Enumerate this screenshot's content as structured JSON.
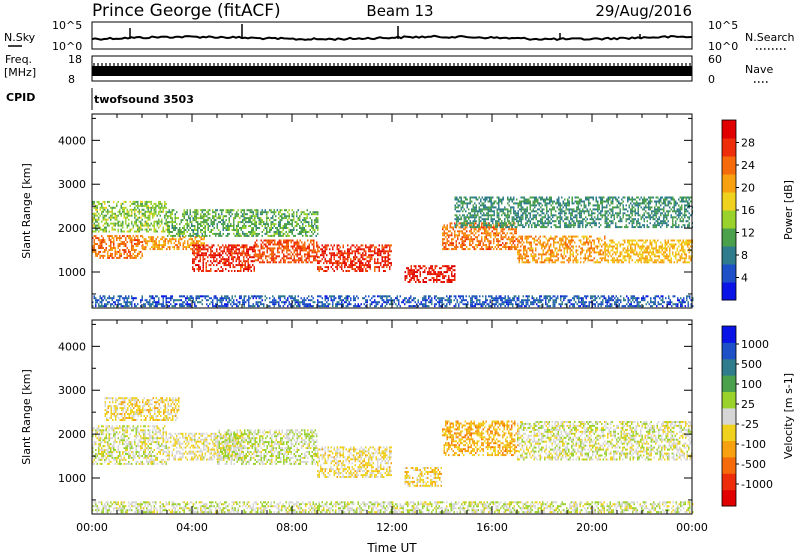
{
  "header": {
    "station": "Prince George (fitACF)",
    "beam": "Beam 13",
    "date": "29/Aug/2016"
  },
  "panels": {
    "noise": {
      "left_label": "N.Sky",
      "left_ticks": [
        "10^5",
        "10^0"
      ],
      "right_label": "N.Search",
      "right_ticks": [
        "10^5",
        "10^0"
      ]
    },
    "freq": {
      "left_label_1": "Freq.",
      "left_label_2": "[MHz]",
      "left_ticks": [
        "18",
        "8"
      ],
      "right_label": "Nave",
      "right_ticks": [
        "60",
        "0"
      ]
    },
    "cpid": {
      "label": "CPID",
      "value": "twofsound 3503"
    }
  },
  "chart_data": [
    {
      "type": "heatmap",
      "title": "",
      "xlabel": "Time UT",
      "ylabel": "Slant Range [km]",
      "x_ticks": [
        "00:00",
        "04:00",
        "08:00",
        "12:00",
        "16:00",
        "20:00",
        "00:00"
      ],
      "xlim_hours": [
        0,
        24
      ],
      "y_ticks": [
        1000,
        2000,
        3000,
        4000
      ],
      "ylim": [
        180,
        4600
      ],
      "colorbar": {
        "label": "Power [dB]",
        "ticks": [
          "4",
          "8",
          "12",
          "16",
          "20",
          "24",
          "28"
        ],
        "range": [
          0,
          30
        ],
        "colors": [
          "#0a14e6",
          "#1e50c8",
          "#2f7d8c",
          "#4ba04b",
          "#9ad22c",
          "#f0d21e",
          "#f7a010",
          "#f56a0a",
          "#ee2d0a",
          "#e00000"
        ]
      },
      "regions": [
        {
          "t": [
            0.0,
            2.0
          ],
          "r": [
            1300,
            1800
          ],
          "value": 22
        },
        {
          "t": [
            2.0,
            4.5
          ],
          "r": [
            1500,
            1800
          ],
          "value": 20
        },
        {
          "t": [
            4.0,
            6.5
          ],
          "r": [
            1000,
            1600
          ],
          "value": 26
        },
        {
          "t": [
            6.5,
            9.0
          ],
          "r": [
            1200,
            1700
          ],
          "value": 24
        },
        {
          "t": [
            9.0,
            12.0
          ],
          "r": [
            1000,
            1600
          ],
          "value": 26
        },
        {
          "t": [
            12.5,
            14.5
          ],
          "r": [
            750,
            1150
          ],
          "value": 27
        },
        {
          "t": [
            14.0,
            17.0
          ],
          "r": [
            1500,
            2100
          ],
          "value": 22
        },
        {
          "t": [
            17.0,
            20.5
          ],
          "r": [
            1200,
            1800
          ],
          "value": 20
        },
        {
          "t": [
            20.5,
            24.0
          ],
          "r": [
            1200,
            1700
          ],
          "value": 18
        },
        {
          "t": [
            0.0,
            3.0
          ],
          "r": [
            1900,
            2600
          ],
          "value": 13
        },
        {
          "t": [
            3.0,
            9.0
          ],
          "r": [
            1800,
            2400
          ],
          "value": 11
        },
        {
          "t": [
            14.5,
            24.0
          ],
          "r": [
            2000,
            2700
          ],
          "value": 9
        },
        {
          "t": [
            0.0,
            24.0
          ],
          "r": [
            200,
            450
          ],
          "value": 5
        }
      ]
    },
    {
      "type": "heatmap",
      "title": "",
      "xlabel": "Time UT",
      "ylabel": "Slant Range [km]",
      "x_ticks": [
        "00:00",
        "04:00",
        "08:00",
        "12:00",
        "16:00",
        "20:00",
        "00:00"
      ],
      "xlim_hours": [
        0,
        24
      ],
      "y_ticks": [
        1000,
        2000,
        3000,
        4000
      ],
      "ylim": [
        180,
        4600
      ],
      "colorbar": {
        "label": "Velocity [m s-1]",
        "ticks": [
          "1000",
          "500",
          "100",
          "25",
          "-25",
          "-100",
          "-500",
          "-1000"
        ],
        "range": [
          -1000,
          1000
        ],
        "colors": [
          "#e00000",
          "#ee2d0a",
          "#f56a0a",
          "#f7a010",
          "#f0d21e",
          "#d6d6d6",
          "#9ad22c",
          "#4ba04b",
          "#2f7d8c",
          "#1e50c8",
          "#0a14e6"
        ]
      },
      "regions": [
        {
          "t": [
            0.0,
            3.0
          ],
          "r": [
            1300,
            2200
          ],
          "value": 0
        },
        {
          "t": [
            0.5,
            3.5
          ],
          "r": [
            2300,
            2800
          ],
          "value": -150
        },
        {
          "t": [
            3.0,
            6.0
          ],
          "r": [
            1400,
            2000
          ],
          "value": -80
        },
        {
          "t": [
            5.0,
            9.0
          ],
          "r": [
            1300,
            2100
          ],
          "value": 60
        },
        {
          "t": [
            9.0,
            12.0
          ],
          "r": [
            1000,
            1700
          ],
          "value": -120
        },
        {
          "t": [
            12.5,
            14.0
          ],
          "r": [
            800,
            1250
          ],
          "value": -200
        },
        {
          "t": [
            14.0,
            17.0
          ],
          "r": [
            1500,
            2300
          ],
          "value": -300
        },
        {
          "t": [
            17.0,
            24.0
          ],
          "r": [
            1400,
            2300
          ],
          "value": 0
        },
        {
          "t": [
            0.0,
            24.0
          ],
          "r": [
            200,
            450
          ],
          "value": 40
        }
      ]
    }
  ]
}
